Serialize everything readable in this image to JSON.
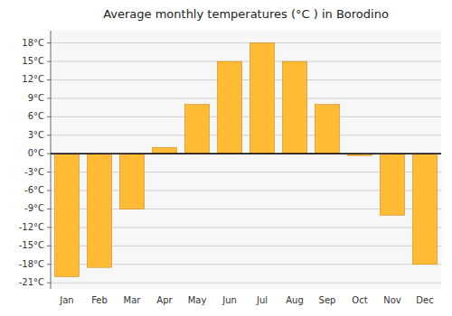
{
  "chart_data": {
    "type": "bar",
    "title": "Average monthly temperatures (°C ) in Borodino",
    "categories": [
      "Jan",
      "Feb",
      "Mar",
      "Apr",
      "May",
      "Jun",
      "Jul",
      "Aug",
      "Sep",
      "Oct",
      "Nov",
      "Dec"
    ],
    "values": [
      -20,
      -18.5,
      -9,
      1,
      8,
      15,
      18,
      15,
      8,
      -0.3,
      -10,
      -18
    ],
    "color": "#FFBB33",
    "ylim": [
      -22,
      20
    ],
    "yticks": [
      {
        "value": -21,
        "label": "-21°C"
      },
      {
        "value": -18,
        "label": "-18°C"
      },
      {
        "value": -15,
        "label": "-15°C"
      },
      {
        "value": -12,
        "label": "-12°C"
      },
      {
        "value": -9,
        "label": "-9°C"
      },
      {
        "value": -6,
        "label": "-6°C"
      },
      {
        "value": -3,
        "label": "-3°C"
      },
      {
        "value": 0,
        "label": "0°C"
      },
      {
        "value": 3,
        "label": "3°C"
      },
      {
        "value": 6,
        "label": "6°C"
      },
      {
        "value": 9,
        "label": "9°C"
      },
      {
        "value": 12,
        "label": "12°C"
      },
      {
        "value": 15,
        "label": "15°C"
      },
      {
        "value": 18,
        "label": "18°C"
      }
    ],
    "grid": true
  }
}
